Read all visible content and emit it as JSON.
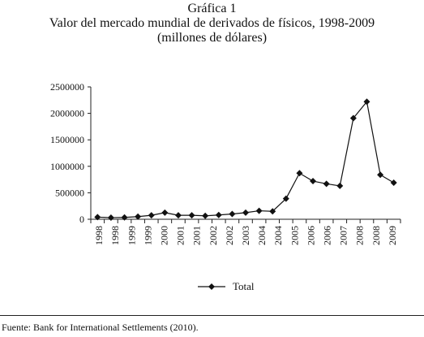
{
  "chart_data": {
    "type": "line",
    "title_lines": [
      "Gráfica 1",
      "Valor del mercado mundial de derivados de físicos, 1998-2009",
      "(millones de dólares)"
    ],
    "xlabel": "",
    "ylabel": "",
    "ylim": [
      0,
      2500000
    ],
    "yticks": [
      "0",
      "500000",
      "1000000",
      "1500000",
      "2000000",
      "2500000"
    ],
    "ytick_values": [
      0,
      500000,
      1000000,
      1500000,
      2000000,
      2500000
    ],
    "x_tick_labels": [
      "1998",
      "1998",
      "1999",
      "1999",
      "2000",
      "2001",
      "2001",
      "2002",
      "2002",
      "2003",
      "2004",
      "2004",
      "2005",
      "2006",
      "2006",
      "2007",
      "2008",
      "2008",
      "2009"
    ],
    "grid": false,
    "legend": "bottom",
    "series": [
      {
        "name": "Total",
        "marker": "diamond",
        "color": "#111111",
        "x": [
          "1998-H1",
          "1998-H2",
          "1999-H1",
          "1999-H2",
          "2000-H1",
          "2000-H2",
          "2001-H1",
          "2001-H2",
          "2002-H1",
          "2002-H2",
          "2003-H1",
          "2003-H2",
          "2004-H1",
          "2004-H2",
          "2005-H1",
          "2005-H2",
          "2006-H1",
          "2006-H2",
          "2007-H1",
          "2007-H2",
          "2008-H1",
          "2008-H2",
          "2009-H1"
        ],
        "values": [
          40000,
          30000,
          35000,
          50000,
          75000,
          125000,
          75000,
          75000,
          65000,
          80000,
          100000,
          125000,
          160000,
          150000,
          390000,
          870000,
          720000,
          670000,
          630000,
          1910000,
          2220000,
          840000,
          690000
        ]
      }
    ]
  },
  "source_note": "Fuente: Bank for International Settlements (2010)."
}
